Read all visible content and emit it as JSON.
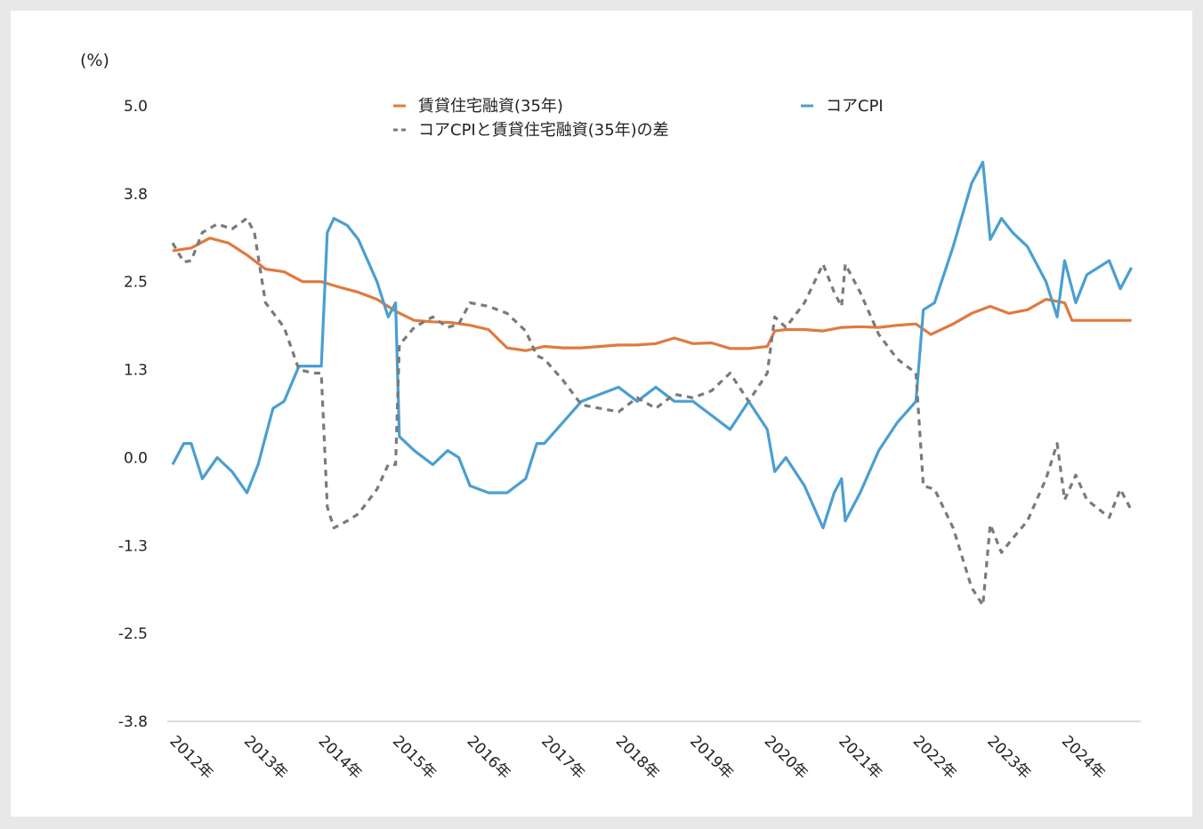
{
  "chart_data": {
    "type": "line",
    "unit_label": "(%)",
    "y_ticks": [
      "5.0",
      "3.8",
      "2.5",
      "1.3",
      "0.0",
      "-1.3",
      "-2.5",
      "-3.8"
    ],
    "ylim": [
      -3.75,
      5.0
    ],
    "x_ticks": [
      "2012年",
      "2013年",
      "2014年",
      "2015年",
      "2016年",
      "2017年",
      "2018年",
      "2019年",
      "2020年",
      "2021年",
      "2022年",
      "2023年",
      "2024年"
    ],
    "x_start_year": 2012,
    "x_end_year": 2025,
    "grid": false,
    "legend_position": "top",
    "series": [
      {
        "name": "賃貸住宅融資(35年)",
        "color": "#e07a3f",
        "dash": "",
        "points": [
          [
            2012.0,
            2.94
          ],
          [
            2012.25,
            2.98
          ],
          [
            2012.5,
            3.12
          ],
          [
            2012.75,
            3.05
          ],
          [
            2013.0,
            2.88
          ],
          [
            2013.25,
            2.68
          ],
          [
            2013.5,
            2.64
          ],
          [
            2013.75,
            2.5
          ],
          [
            2014.0,
            2.5
          ],
          [
            2014.25,
            2.42
          ],
          [
            2014.5,
            2.35
          ],
          [
            2014.75,
            2.25
          ],
          [
            2015.0,
            2.08
          ],
          [
            2015.25,
            1.95
          ],
          [
            2015.5,
            1.93
          ],
          [
            2015.75,
            1.92
          ],
          [
            2016.0,
            1.88
          ],
          [
            2016.25,
            1.82
          ],
          [
            2016.5,
            1.56
          ],
          [
            2016.75,
            1.52
          ],
          [
            2017.0,
            1.58
          ],
          [
            2017.25,
            1.56
          ],
          [
            2017.5,
            1.56
          ],
          [
            2017.75,
            1.58
          ],
          [
            2018.0,
            1.6
          ],
          [
            2018.25,
            1.6
          ],
          [
            2018.5,
            1.62
          ],
          [
            2018.75,
            1.7
          ],
          [
            2019.0,
            1.62
          ],
          [
            2019.25,
            1.63
          ],
          [
            2019.5,
            1.55
          ],
          [
            2019.75,
            1.55
          ],
          [
            2020.0,
            1.58
          ],
          [
            2020.1,
            1.8
          ],
          [
            2020.25,
            1.82
          ],
          [
            2020.5,
            1.82
          ],
          [
            2020.75,
            1.8
          ],
          [
            2021.0,
            1.85
          ],
          [
            2021.25,
            1.86
          ],
          [
            2021.5,
            1.85
          ],
          [
            2021.75,
            1.88
          ],
          [
            2022.0,
            1.9
          ],
          [
            2022.2,
            1.75
          ],
          [
            2022.5,
            1.9
          ],
          [
            2022.75,
            2.05
          ],
          [
            2023.0,
            2.15
          ],
          [
            2023.25,
            2.05
          ],
          [
            2023.5,
            2.1
          ],
          [
            2023.75,
            2.25
          ],
          [
            2024.0,
            2.2
          ],
          [
            2024.1,
            1.95
          ],
          [
            2024.5,
            1.95
          ],
          [
            2024.9,
            1.95
          ]
        ]
      },
      {
        "name": "コアCPI",
        "color": "#4a9fd1",
        "dash": "",
        "points": [
          [
            2012.0,
            -0.1
          ],
          [
            2012.15,
            0.2
          ],
          [
            2012.25,
            0.2
          ],
          [
            2012.4,
            -0.3
          ],
          [
            2012.6,
            0.0
          ],
          [
            2012.8,
            -0.2
          ],
          [
            2013.0,
            -0.5
          ],
          [
            2013.15,
            -0.1
          ],
          [
            2013.35,
            0.7
          ],
          [
            2013.5,
            0.8
          ],
          [
            2013.7,
            1.3
          ],
          [
            2013.9,
            1.3
          ],
          [
            2014.0,
            1.3
          ],
          [
            2014.08,
            3.2
          ],
          [
            2014.17,
            3.4
          ],
          [
            2014.35,
            3.3
          ],
          [
            2014.5,
            3.1
          ],
          [
            2014.75,
            2.5
          ],
          [
            2014.9,
            2.0
          ],
          [
            2015.0,
            2.2
          ],
          [
            2015.05,
            0.3
          ],
          [
            2015.25,
            0.1
          ],
          [
            2015.5,
            -0.1
          ],
          [
            2015.7,
            0.1
          ],
          [
            2015.85,
            0.0
          ],
          [
            2016.0,
            -0.4
          ],
          [
            2016.25,
            -0.5
          ],
          [
            2016.5,
            -0.5
          ],
          [
            2016.75,
            -0.3
          ],
          [
            2016.9,
            0.2
          ],
          [
            2017.0,
            0.2
          ],
          [
            2017.25,
            0.5
          ],
          [
            2017.5,
            0.8
          ],
          [
            2017.75,
            0.9
          ],
          [
            2018.0,
            1.0
          ],
          [
            2018.25,
            0.8
          ],
          [
            2018.5,
            1.0
          ],
          [
            2018.75,
            0.8
          ],
          [
            2019.0,
            0.8
          ],
          [
            2019.25,
            0.6
          ],
          [
            2019.5,
            0.4
          ],
          [
            2019.75,
            0.8
          ],
          [
            2020.0,
            0.4
          ],
          [
            2020.1,
            -0.2
          ],
          [
            2020.25,
            0.0
          ],
          [
            2020.5,
            -0.4
          ],
          [
            2020.75,
            -1.0
          ],
          [
            2020.9,
            -0.5
          ],
          [
            2021.0,
            -0.3
          ],
          [
            2021.05,
            -0.9
          ],
          [
            2021.25,
            -0.5
          ],
          [
            2021.5,
            0.1
          ],
          [
            2021.75,
            0.5
          ],
          [
            2022.0,
            0.8
          ],
          [
            2022.1,
            2.1
          ],
          [
            2022.25,
            2.2
          ],
          [
            2022.5,
            3.0
          ],
          [
            2022.75,
            3.9
          ],
          [
            2022.9,
            4.2
          ],
          [
            2023.0,
            3.1
          ],
          [
            2023.15,
            3.4
          ],
          [
            2023.3,
            3.2
          ],
          [
            2023.5,
            3.0
          ],
          [
            2023.75,
            2.5
          ],
          [
            2023.9,
            2.0
          ],
          [
            2024.0,
            2.8
          ],
          [
            2024.15,
            2.2
          ],
          [
            2024.3,
            2.6
          ],
          [
            2024.6,
            2.8
          ],
          [
            2024.75,
            2.4
          ],
          [
            2024.9,
            2.7
          ]
        ]
      },
      {
        "name": "コアCPIと賃貸住宅融資(35年)の差",
        "color": "#7a7a7a",
        "dash": "7 6",
        "points": [
          [
            2012.0,
            3.05
          ],
          [
            2012.15,
            2.78
          ],
          [
            2012.25,
            2.8
          ],
          [
            2012.4,
            3.2
          ],
          [
            2012.6,
            3.32
          ],
          [
            2012.8,
            3.25
          ],
          [
            2013.0,
            3.4
          ],
          [
            2013.1,
            3.2
          ],
          [
            2013.25,
            2.2
          ],
          [
            2013.5,
            1.85
          ],
          [
            2013.7,
            1.25
          ],
          [
            2013.9,
            1.2
          ],
          [
            2014.0,
            1.2
          ],
          [
            2014.08,
            -0.7
          ],
          [
            2014.17,
            -1.0
          ],
          [
            2014.35,
            -0.9
          ],
          [
            2014.5,
            -0.8
          ],
          [
            2014.75,
            -0.45
          ],
          [
            2014.9,
            -0.1
          ],
          [
            2015.0,
            -0.1
          ],
          [
            2015.05,
            1.6
          ],
          [
            2015.25,
            1.85
          ],
          [
            2015.5,
            2.0
          ],
          [
            2015.7,
            1.85
          ],
          [
            2015.85,
            1.9
          ],
          [
            2016.0,
            2.2
          ],
          [
            2016.25,
            2.15
          ],
          [
            2016.5,
            2.05
          ],
          [
            2016.75,
            1.8
          ],
          [
            2016.9,
            1.45
          ],
          [
            2017.0,
            1.4
          ],
          [
            2017.25,
            1.1
          ],
          [
            2017.5,
            0.75
          ],
          [
            2017.75,
            0.7
          ],
          [
            2018.0,
            0.65
          ],
          [
            2018.25,
            0.85
          ],
          [
            2018.5,
            0.7
          ],
          [
            2018.75,
            0.9
          ],
          [
            2019.0,
            0.85
          ],
          [
            2019.25,
            0.95
          ],
          [
            2019.5,
            1.2
          ],
          [
            2019.75,
            0.8
          ],
          [
            2020.0,
            1.2
          ],
          [
            2020.1,
            2.0
          ],
          [
            2020.25,
            1.85
          ],
          [
            2020.5,
            2.2
          ],
          [
            2020.75,
            2.75
          ],
          [
            2020.9,
            2.35
          ],
          [
            2021.0,
            2.15
          ],
          [
            2021.05,
            2.75
          ],
          [
            2021.25,
            2.35
          ],
          [
            2021.5,
            1.75
          ],
          [
            2021.75,
            1.4
          ],
          [
            2022.0,
            1.2
          ],
          [
            2022.1,
            -0.4
          ],
          [
            2022.25,
            -0.45
          ],
          [
            2022.5,
            -1.0
          ],
          [
            2022.75,
            -1.85
          ],
          [
            2022.9,
            -2.1
          ],
          [
            2023.0,
            -0.95
          ],
          [
            2023.15,
            -1.35
          ],
          [
            2023.3,
            -1.15
          ],
          [
            2023.5,
            -0.9
          ],
          [
            2023.75,
            -0.3
          ],
          [
            2023.9,
            0.2
          ],
          [
            2024.0,
            -0.6
          ],
          [
            2024.15,
            -0.25
          ],
          [
            2024.3,
            -0.6
          ],
          [
            2024.6,
            -0.85
          ],
          [
            2024.75,
            -0.45
          ],
          [
            2024.9,
            -0.75
          ]
        ]
      }
    ]
  }
}
